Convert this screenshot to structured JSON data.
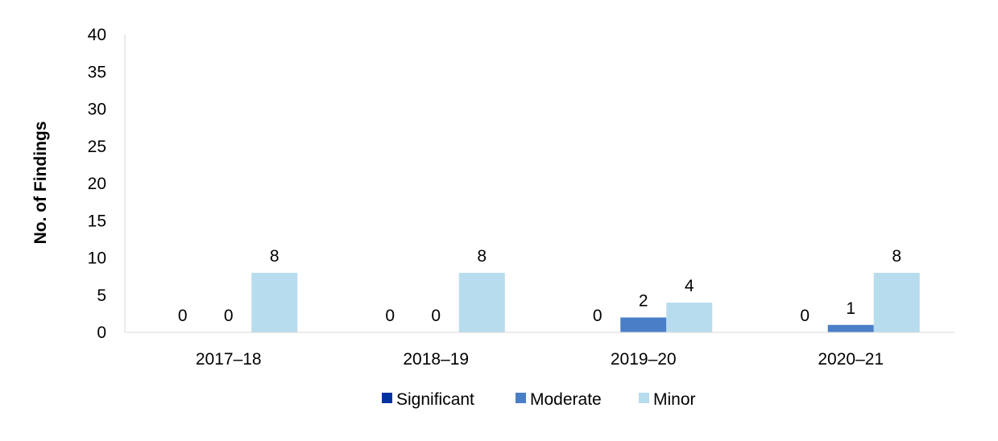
{
  "chart_data": {
    "type": "bar",
    "title": "",
    "xlabel": "",
    "ylabel": "No. of Findings",
    "ylim": [
      0,
      40
    ],
    "yticks": [
      0,
      5,
      10,
      15,
      20,
      25,
      30,
      35,
      40
    ],
    "categories": [
      "2017–18",
      "2018–19",
      "2019–20",
      "2020–21"
    ],
    "series": [
      {
        "name": "Significant",
        "color": "#0033A0",
        "values": [
          0,
          0,
          0,
          0
        ]
      },
      {
        "name": "Moderate",
        "color": "#4A7EC7",
        "values": [
          0,
          0,
          2,
          1
        ]
      },
      {
        "name": "Minor",
        "color": "#B7DCEE",
        "values": [
          8,
          8,
          4,
          8
        ]
      }
    ],
    "grid": false,
    "legend_position": "bottom"
  }
}
